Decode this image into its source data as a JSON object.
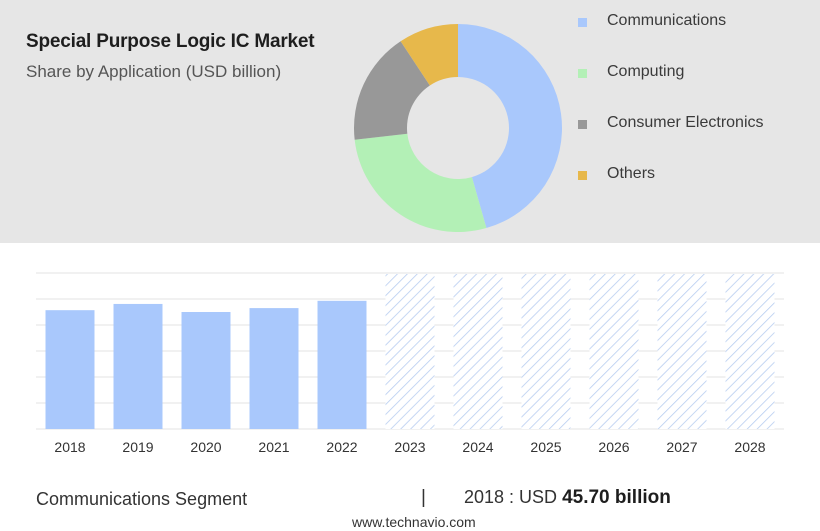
{
  "header": {
    "title": "Special Purpose Logic IC Market",
    "subtitle": "Share by Application (USD billion)"
  },
  "chart_data": [
    {
      "type": "pie",
      "variant": "donut",
      "categories": [
        "Communications",
        "Computing",
        "Consumer Electronics",
        "Others"
      ],
      "values": [
        45.6,
        27.6,
        17.5,
        9.3
      ],
      "colors": [
        "#a9c8fc",
        "#b3f0b6",
        "#989898",
        "#e7b84b"
      ],
      "legend_position": "right"
    },
    {
      "type": "bar",
      "categories": [
        "2018",
        "2019",
        "2020",
        "2021",
        "2022",
        "2023",
        "2024",
        "2025",
        "2026",
        "2027",
        "2028"
      ],
      "values": [
        45.7,
        48.1,
        45.0,
        46.5,
        49.3,
        null,
        null,
        null,
        null,
        null,
        null
      ],
      "forecast_categories": [
        "2023",
        "2024",
        "2025",
        "2026",
        "2027",
        "2028"
      ],
      "ylim": [
        0,
        60
      ],
      "grid": true,
      "bar_color": "#a9c8fc",
      "forecast_pattern": "diagonal-hatch"
    }
  ],
  "footer": {
    "segment": "Communications Segment",
    "separator": "|",
    "year_prefix": "2018 : USD",
    "value": "45.70 billion"
  },
  "source": "www.technavio.com"
}
